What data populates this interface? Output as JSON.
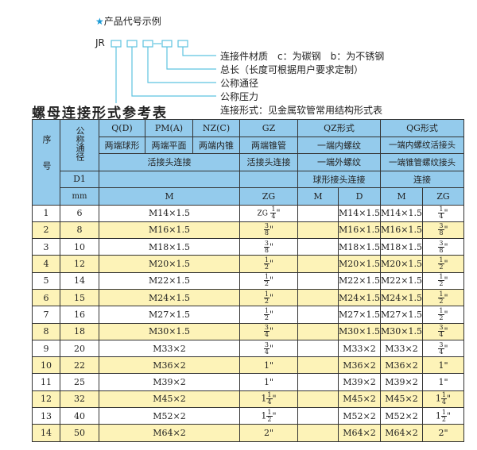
{
  "example": {
    "title": "产品代号示例",
    "code_prefix": "JR",
    "labels": [
      "连接件材质　c：为碳钢　b：为不锈钢",
      "总长（长度可根据用户要求定制）",
      "公称通径",
      "公称压力",
      "连接形式：见金属软管常用结构形式表"
    ],
    "accent": "#1a9ad6"
  },
  "table_title": "螺母连接形式参考表",
  "header": {
    "seq": "序号",
    "dn": "公称通径",
    "q": "Q(D)",
    "pm": "PM(A)",
    "nz": "NZ(C)",
    "gz": "GZ",
    "qz": "QZ形式",
    "qg": "QG形式",
    "q2": "两端球形",
    "pm2": "两端平面",
    "nz2": "两端内锥",
    "gz2": "两端锥管",
    "qz2": "一端内螺纹",
    "qg2": "一端内螺纹活接头",
    "union": "活接头连接",
    "gz3": "活接头连接",
    "qz3": "一端外螺纹",
    "qg3": "一端锥管螺纹接头",
    "d1": "D1",
    "qz4": "球形接头连接",
    "qg4": "连接",
    "mm": "mm",
    "m": "M",
    "zg": "ZG",
    "qz_m": "M",
    "qz_d": "D",
    "qg_m": "M",
    "qg_zg": "ZG",
    "header_color": "#94cbec",
    "alt_row_color": "#fdf3b8"
  },
  "rows": [
    {
      "no": "1",
      "dn": "6",
      "m": "M14×1.5",
      "zg": {
        "prefix": "ZG",
        "whole": "",
        "num": "1",
        "den": "4"
      },
      "qz_m": "",
      "qz_d": "M14×1.5",
      "qg_m": "M14×1.5",
      "qg_zg": {
        "whole": "",
        "num": "1",
        "den": "4"
      }
    },
    {
      "no": "2",
      "dn": "8",
      "m": "M16×1.5",
      "zg": {
        "whole": "",
        "num": "3",
        "den": "8"
      },
      "qz_m": "",
      "qz_d": "M16×1.5",
      "qg_m": "M16×1.5",
      "qg_zg": {
        "whole": "",
        "num": "3",
        "den": "8"
      }
    },
    {
      "no": "3",
      "dn": "10",
      "m": "M18×1.5",
      "zg": {
        "whole": "",
        "num": "3",
        "den": "8"
      },
      "qz_m": "",
      "qz_d": "M18×1.5",
      "qg_m": "M18×1.5",
      "qg_zg": {
        "whole": "",
        "num": "3",
        "den": "8"
      }
    },
    {
      "no": "4",
      "dn": "12",
      "m": "M20×1.5",
      "zg": {
        "whole": "",
        "num": "1",
        "den": "2"
      },
      "qz_m": "",
      "qz_d": "M20×1.5",
      "qg_m": "M20×1.5",
      "qg_zg": {
        "whole": "",
        "num": "1",
        "den": "2"
      }
    },
    {
      "no": "5",
      "dn": "14",
      "m": "M22×1.5",
      "zg": {
        "whole": "",
        "num": "1",
        "den": "2"
      },
      "qz_m": "",
      "qz_d": "M22×1.5",
      "qg_m": "M22×1.5",
      "qg_zg": {
        "whole": "",
        "num": "1",
        "den": "2"
      }
    },
    {
      "no": "6",
      "dn": "15",
      "m": "M24×1.5",
      "zg": {
        "whole": "",
        "num": "1",
        "den": "2"
      },
      "qz_m": "",
      "qz_d": "M24×1.5",
      "qg_m": "M24×1.5",
      "qg_zg": {
        "whole": "",
        "num": "1",
        "den": "2"
      }
    },
    {
      "no": "7",
      "dn": "16",
      "m": "M27×1.5",
      "zg": {
        "whole": "",
        "num": "1",
        "den": "2"
      },
      "qz_m": "",
      "qz_d": "M27×1.5",
      "qg_m": "M27×1.5",
      "qg_zg": {
        "whole": "",
        "num": "1",
        "den": "2"
      }
    },
    {
      "no": "8",
      "dn": "18",
      "m": "M30×1.5",
      "zg": {
        "whole": "",
        "num": "3",
        "den": "4"
      },
      "qz_m": "",
      "qz_d": "M30×1.5",
      "qg_m": "M30×1.5",
      "qg_zg": {
        "whole": "",
        "num": "3",
        "den": "4"
      }
    },
    {
      "no": "9",
      "dn": "20",
      "m": "M33×2",
      "zg": {
        "whole": "",
        "num": "3",
        "den": "4"
      },
      "qz_m": "",
      "qz_d": "M33×2",
      "qg_m": "M33×2",
      "qg_zg": {
        "whole": "",
        "num": "3",
        "den": "4"
      }
    },
    {
      "no": "10",
      "dn": "22",
      "m": "M36×2",
      "zg": {
        "whole": "1",
        "num": "",
        "den": ""
      },
      "qz_m": "",
      "qz_d": "M36×2",
      "qg_m": "M36×2",
      "qg_zg": {
        "whole": "1",
        "num": "",
        "den": ""
      }
    },
    {
      "no": "11",
      "dn": "25",
      "m": "M39×2",
      "zg": {
        "whole": "1",
        "num": "",
        "den": ""
      },
      "qz_m": "",
      "qz_d": "M39×2",
      "qg_m": "M39×2",
      "qg_zg": {
        "whole": "1",
        "num": "",
        "den": ""
      }
    },
    {
      "no": "12",
      "dn": "32",
      "m": "M45×2",
      "zg": {
        "whole": "1",
        "num": "1",
        "den": "4"
      },
      "qz_m": "",
      "qz_d": "M45×2",
      "qg_m": "M45×2",
      "qg_zg": {
        "whole": "1",
        "num": "1",
        "den": "4"
      }
    },
    {
      "no": "13",
      "dn": "40",
      "m": "M52×2",
      "zg": {
        "whole": "1",
        "num": "1",
        "den": "2"
      },
      "qz_m": "",
      "qz_d": "M52×2",
      "qg_m": "M52×2",
      "qg_zg": {
        "whole": "1",
        "num": "1",
        "den": "2"
      }
    },
    {
      "no": "14",
      "dn": "50",
      "m": "M64×2",
      "zg": {
        "whole": "2",
        "num": "",
        "den": ""
      },
      "qz_m": "",
      "qz_d": "M64×2",
      "qg_m": "M64×2",
      "qg_zg": {
        "whole": "2",
        "num": "",
        "den": ""
      }
    }
  ]
}
